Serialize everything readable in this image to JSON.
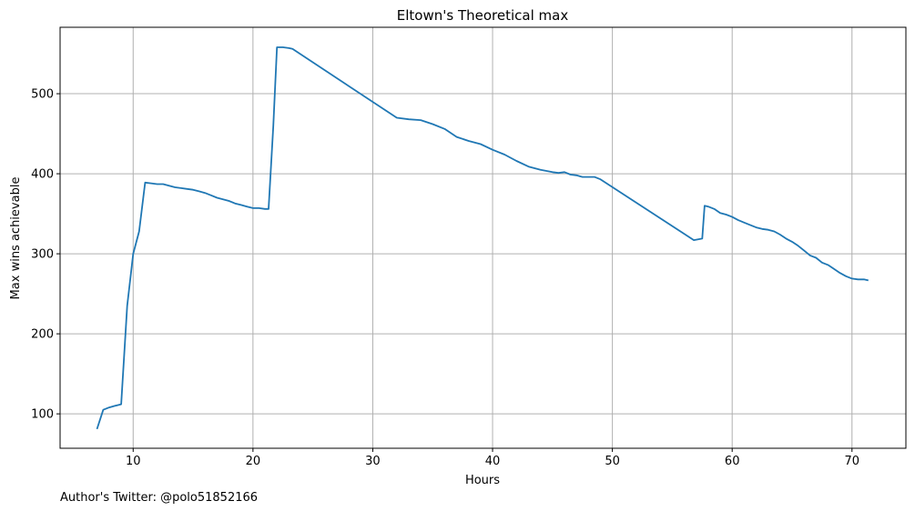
{
  "chart_data": {
    "type": "line",
    "title": "Eltown's Theoretical max",
    "xlabel": "Hours",
    "ylabel": "Max wins achievable",
    "footnote": "Author's Twitter: @polo51852166",
    "xlim": [
      3.9,
      74.5
    ],
    "ylim": [
      57,
      583
    ],
    "xticks": [
      10,
      20,
      30,
      40,
      50,
      60,
      70
    ],
    "yticks": [
      100,
      200,
      300,
      400,
      500
    ],
    "grid": true,
    "line_color": "#1f77b4",
    "series": [
      {
        "x": [
          7.0,
          7.5,
          8.0,
          8.5,
          9.0,
          9.5,
          10.0,
          10.5,
          11.0,
          11.5,
          12.0,
          12.5,
          13.0,
          13.5,
          14.0,
          14.5,
          15.0,
          15.5,
          16.0,
          16.5,
          17.0,
          17.5,
          18.0,
          18.5,
          19.0,
          19.5,
          20.0,
          20.5,
          21.0,
          21.3,
          21.7,
          22.0,
          22.5,
          23.0,
          23.3,
          32.0,
          33.0,
          34.0,
          35.0,
          36.0,
          37.0,
          38.0,
          39.0,
          40.0,
          41.0,
          42.0,
          43.0,
          44.0,
          45.0,
          45.5,
          46.0,
          46.5,
          47.0,
          47.5,
          48.0,
          48.5,
          49.0,
          56.8,
          57.5,
          57.7,
          58.0,
          58.5,
          59.0,
          59.5,
          60.0,
          60.5,
          61.0,
          61.5,
          62.0,
          62.5,
          63.0,
          63.5,
          64.0,
          64.5,
          65.0,
          65.5,
          66.0,
          66.5,
          67.0,
          67.5,
          68.0,
          68.5,
          69.0,
          69.5,
          70.0,
          70.5,
          71.0,
          71.3
        ],
        "y": [
          82,
          105,
          108,
          110,
          112,
          235,
          300,
          328,
          389,
          388,
          387,
          387,
          385,
          383,
          382,
          381,
          380,
          378,
          376,
          373,
          370,
          368,
          366,
          363,
          361,
          359,
          357,
          357,
          356,
          356,
          460,
          558,
          558,
          557,
          556,
          470,
          468,
          467,
          462,
          456,
          446,
          441,
          437,
          430,
          424,
          416,
          409,
          405,
          402,
          401,
          402,
          399,
          398,
          396,
          396,
          396,
          393,
          317,
          319,
          360,
          359,
          356,
          351,
          349,
          346,
          342,
          339,
          336,
          333,
          331,
          330,
          328,
          324,
          319,
          315,
          310,
          304,
          298,
          295,
          289,
          286,
          281,
          276,
          272,
          269,
          268,
          268,
          267
        ]
      }
    ]
  }
}
